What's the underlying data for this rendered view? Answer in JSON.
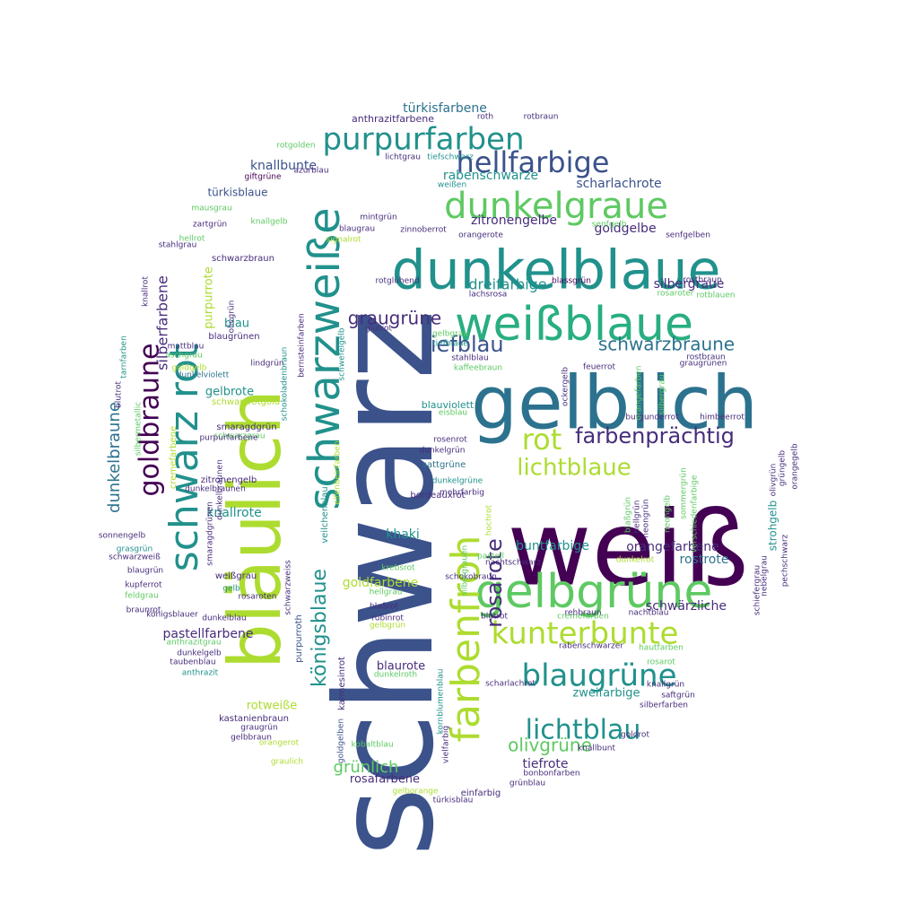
{
  "palette": {
    "purple": "#440154",
    "indigo": "#472d7b",
    "blue": "#3b528b",
    "steel": "#2c728e",
    "teal": "#21918c",
    "green": "#28ae80",
    "lime": "#5ec962",
    "yellowgreen": "#addc30",
    "yellow": "#b5de2b"
  },
  "words": [
    {
      "text": "schwarz"
    },
    {
      "text": "weiß"
    },
    {
      "text": "bläulich"
    },
    {
      "text": "gelblich"
    },
    {
      "text": "dunkelblaue"
    },
    {
      "text": "schwarzweiße"
    },
    {
      "text": "weißblaue"
    },
    {
      "text": "gelbgrüne"
    },
    {
      "text": "schwarz rot"
    },
    {
      "text": "farbenfroh"
    },
    {
      "text": "dunkelgraue"
    },
    {
      "text": "purpurfarben"
    },
    {
      "text": "hellfarbige"
    },
    {
      "text": "kunterbunte"
    },
    {
      "text": "blaugrüne"
    },
    {
      "text": "goldbraune"
    },
    {
      "text": "farbenprächtig"
    },
    {
      "text": "lichtblaue"
    },
    {
      "text": "lichtblau"
    },
    {
      "text": "rot"
    },
    {
      "text": "tiefblau"
    },
    {
      "text": "schwarzbraune"
    },
    {
      "text": "königsblaue"
    },
    {
      "text": "rosarote"
    },
    {
      "text": "graugrüne"
    },
    {
      "text": "dunkelbraune"
    },
    {
      "text": "olivgrüne"
    },
    {
      "text": "grünlich"
    },
    {
      "text": "türkisfarbene"
    },
    {
      "text": "anthrazitfarbene"
    },
    {
      "text": "roth"
    },
    {
      "text": "rotbraun"
    },
    {
      "text": "rotgolden"
    },
    {
      "text": "lichtgrau"
    },
    {
      "text": "knallbunte"
    },
    {
      "text": "rabenschwarze"
    },
    {
      "text": "giftgrüne"
    },
    {
      "text": "azurblau"
    },
    {
      "text": "weißen"
    },
    {
      "text": "tiefschwarz"
    },
    {
      "text": "scharlachrote"
    },
    {
      "text": "türkisblaue"
    },
    {
      "text": "zitronengelbe"
    },
    {
      "text": "goldgelbe"
    },
    {
      "text": "mausgrau"
    },
    {
      "text": "mintgrün"
    },
    {
      "text": "zartgrün"
    },
    {
      "text": "knallgelb"
    },
    {
      "text": "blaugrau"
    },
    {
      "text": "zinnoberrot"
    },
    {
      "text": "senfgelb"
    },
    {
      "text": "hellrot"
    },
    {
      "text": "signalrot"
    },
    {
      "text": "orangerote"
    },
    {
      "text": "senfgelben"
    },
    {
      "text": "stahlgrau"
    },
    {
      "text": "schwarzbraun"
    },
    {
      "text": "dreifarbige"
    },
    {
      "text": "silbergraue"
    },
    {
      "text": "rotglühend"
    },
    {
      "text": "blassgrün"
    },
    {
      "text": "rostbraun"
    },
    {
      "text": "lachsrosa"
    },
    {
      "text": "rosaroter"
    },
    {
      "text": "rotblauen"
    },
    {
      "text": "blau"
    },
    {
      "text": "purpurrote"
    },
    {
      "text": "olivgrün"
    },
    {
      "text": "blaugrünen"
    },
    {
      "text": "glutrot"
    },
    {
      "text": "gelbgrau"
    },
    {
      "text": "tiefblaue"
    },
    {
      "text": "mattblau"
    },
    {
      "text": "aschgrau"
    },
    {
      "text": "lindgrün"
    },
    {
      "text": "kaffeebraun"
    },
    {
      "text": "stahlblau"
    },
    {
      "text": "feuerrot"
    },
    {
      "text": "rostbraun"
    },
    {
      "text": "graugrünen"
    },
    {
      "text": "goldgelb"
    },
    {
      "text": "dunkelviolett"
    },
    {
      "text": "gelbrote"
    },
    {
      "text": "schwarzrotgold"
    },
    {
      "text": "blauviolett"
    },
    {
      "text": "eisblau"
    },
    {
      "text": "smaragdgrün"
    },
    {
      "text": "schwarzgrau"
    },
    {
      "text": "purpurfarbene"
    },
    {
      "text": "burgunderrot"
    },
    {
      "text": "himbeerrot"
    },
    {
      "text": "dunkelgrün"
    },
    {
      "text": "rosenrot"
    },
    {
      "text": "sattgrüne"
    },
    {
      "text": "zitronengelb"
    },
    {
      "text": "dunkelbraunen"
    },
    {
      "text": "bordeauxrot"
    },
    {
      "text": "dunkelgrüne"
    },
    {
      "text": "mehrfarbig"
    },
    {
      "text": "knallrote"
    },
    {
      "text": "khaki"
    },
    {
      "text": "sonnengelb"
    },
    {
      "text": "grasgrün"
    },
    {
      "text": "schwarzweiß"
    },
    {
      "text": "blaugrün"
    },
    {
      "text": "weißgrau"
    },
    {
      "text": "buntfarbige"
    },
    {
      "text": "orangefarbene"
    },
    {
      "text": "rostrote"
    },
    {
      "text": "krebsrot"
    },
    {
      "text": "schokobraun"
    },
    {
      "text": "pastell"
    },
    {
      "text": "nachtschwarz"
    },
    {
      "text": "dunkelrot"
    },
    {
      "text": "kupferrot"
    },
    {
      "text": "feldgrau"
    },
    {
      "text": "goldfarbene"
    },
    {
      "text": "hellgrau"
    },
    {
      "text": "schwärzliche"
    },
    {
      "text": "gelb"
    },
    {
      "text": "rosaroten"
    },
    {
      "text": "königsblauer"
    },
    {
      "text": "braunrot"
    },
    {
      "text": "blutrot"
    },
    {
      "text": "blaßrot"
    },
    {
      "text": "rubinrot"
    },
    {
      "text": "gelbgrün"
    },
    {
      "text": "cremefarben"
    },
    {
      "text": "rehbraun"
    },
    {
      "text": "nachtblau"
    },
    {
      "text": "dunkelblau"
    },
    {
      "text": "pastellfarbene"
    },
    {
      "text": "anthrazitgrau"
    },
    {
      "text": "dunkelgelb"
    },
    {
      "text": "taubenblau"
    },
    {
      "text": "anthrazit"
    },
    {
      "text": "blaurote"
    },
    {
      "text": "dunkelroth"
    },
    {
      "text": "rabenschwarzer"
    },
    {
      "text": "hautfarben"
    },
    {
      "text": "rosarot"
    },
    {
      "text": "scharlachrot"
    },
    {
      "text": "zweifarbige"
    },
    {
      "text": "knallgrün"
    },
    {
      "text": "saftgrün"
    },
    {
      "text": "silberfarben"
    },
    {
      "text": "rotweiße"
    },
    {
      "text": "kastanienbraun"
    },
    {
      "text": "graugrün"
    },
    {
      "text": "gelbbraun"
    },
    {
      "text": "orangerot"
    },
    {
      "text": "goldrot"
    },
    {
      "text": "knallbunt"
    },
    {
      "text": "kobaltblau"
    },
    {
      "text": "graulich"
    },
    {
      "text": "tiefrote"
    },
    {
      "text": "bonbonfarben"
    },
    {
      "text": "rosafarbene"
    },
    {
      "text": "grünblau"
    },
    {
      "text": "gelborange"
    },
    {
      "text": "einfarbig"
    },
    {
      "text": "türkisblau"
    },
    {
      "text": "dunkelbraunen"
    },
    {
      "text": "blutrot"
    },
    {
      "text": "tarnfarben"
    },
    {
      "text": "silberfarbene"
    },
    {
      "text": "silbermetallic"
    },
    {
      "text": "cremefarbene"
    },
    {
      "text": "schokoladenbraun"
    },
    {
      "text": "bernsteinfarben"
    },
    {
      "text": "schwefelgelb"
    },
    {
      "text": "veilchenblau"
    },
    {
      "text": "elfenbeinfarben"
    },
    {
      "text": "schwarzweiss"
    },
    {
      "text": "purpurroth"
    },
    {
      "text": "goldgelben"
    },
    {
      "text": "karmesinrot"
    },
    {
      "text": "kornblumenblau"
    },
    {
      "text": "vielfarbig"
    },
    {
      "text": "silbergrauen"
    },
    {
      "text": "hochrot"
    },
    {
      "text": "ockergelb"
    },
    {
      "text": "orangefarben"
    },
    {
      "text": "silbergrau"
    },
    {
      "text": "hellgrün"
    },
    {
      "text": "neongrün"
    },
    {
      "text": "blaßgrün"
    },
    {
      "text": "sommergrün"
    },
    {
      "text": "neongelb"
    },
    {
      "text": "verschiedenfarbige"
    },
    {
      "text": "olivgrün"
    },
    {
      "text": "strohgelb"
    },
    {
      "text": "schiefergrau"
    },
    {
      "text": "nebelgrau"
    },
    {
      "text": "grüngelb"
    },
    {
      "text": "pechschwarz"
    },
    {
      "text": "orangegelb"
    },
    {
      "text": "knallrot"
    },
    {
      "text": "smaragdgrünen"
    }
  ]
}
